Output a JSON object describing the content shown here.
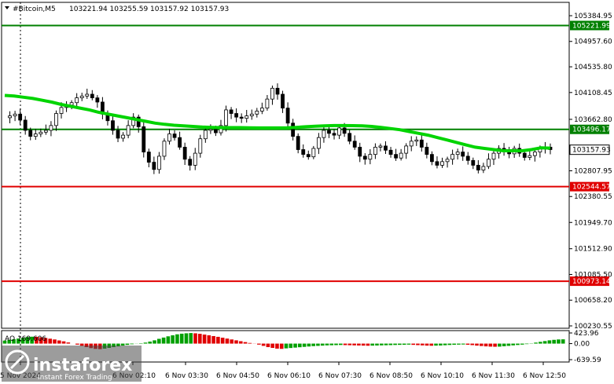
{
  "symbol": "#Bitcoin",
  "timeframe": "M5",
  "ohlc_header": "103221.94 103255.59 103157.92 103157.93",
  "chart_data": [
    {
      "type": "candlestick",
      "title": "#Bitcoin,M5",
      "ylim": [
        100230.55,
        105384.95
      ],
      "y_tick_labels": [
        "105384.95",
        "104957.60",
        "104535.80",
        "104108.45",
        "103662.80",
        "102807.95",
        "102380.55",
        "101949.70",
        "101512.90",
        "101085.50",
        "100658.20",
        "100230.55"
      ],
      "x_tick_labels": [
        "5 Nov 2024",
        "6 Nov 02:10",
        "6 Nov 03:30",
        "6 Nov 04:50",
        "6 Nov 06:10",
        "6 Nov 07:30",
        "6 Nov 08:50",
        "6 Nov 10:10",
        "6 Nov 11:30",
        "6 Nov 12:50"
      ],
      "price_path": [
        103690,
        103720,
        103750,
        103650,
        103480,
        103380,
        103420,
        103450,
        103480,
        103560,
        103760,
        103860,
        103900,
        103940,
        104020,
        104050,
        104080,
        104020,
        103950,
        103750,
        103640,
        103480,
        103350,
        103400,
        103560,
        103700,
        103540,
        103120,
        102950,
        102830,
        103050,
        103300,
        103420,
        103360,
        103200,
        103000,
        102900,
        103100,
        103340,
        103480,
        103500,
        103440,
        103560,
        103820,
        103760,
        103700,
        103680,
        103720,
        103750,
        103800,
        103850,
        104000,
        104180,
        104080,
        103850,
        103600,
        103380,
        103160,
        103080,
        103040,
        103180,
        103360,
        103480,
        103430,
        103400,
        103520,
        103430,
        103300,
        103200,
        103050,
        103000,
        103080,
        103200,
        103220,
        103150,
        103080,
        103020,
        103100,
        103220,
        103300,
        103320,
        103200,
        103080,
        102960,
        102900,
        102960,
        103000,
        103080,
        103120,
        103050,
        102980,
        102900,
        102820,
        102880,
        103000,
        103100,
        103180,
        103140,
        103090,
        103180,
        103100,
        103030,
        103060,
        103120,
        103180,
        103200,
        103160
      ],
      "series": [
        {
          "type": "moving-average",
          "color": "#00d400",
          "values": [
            104060,
            104050,
            104030,
            104010,
            103980,
            103950,
            103910,
            103880,
            103850,
            103820,
            103780,
            103750,
            103720,
            103690,
            103660,
            103630,
            103600,
            103580,
            103565,
            103555,
            103545,
            103535,
            103530,
            103525,
            103525,
            103525,
            103522,
            103520,
            103520,
            103520,
            103522,
            103530,
            103540,
            103548,
            103555,
            103560,
            103560,
            103558,
            103555,
            103545,
            103530,
            103510,
            103490,
            103460,
            103430,
            103400,
            103360,
            103320,
            103280,
            103240,
            103200,
            103180,
            103160,
            103140,
            103140,
            103140,
            103160,
            103190,
            103185
          ]
        },
        {
          "type": "horizontal-level",
          "value": 105221.99,
          "label": "105221.99",
          "color": "#008000"
        },
        {
          "type": "horizontal-level",
          "value": 103496.17,
          "label": "103496.17",
          "color": "#008000"
        },
        {
          "type": "horizontal-level",
          "value": 102544.57,
          "label": "102544.57",
          "color": "#e00000"
        },
        {
          "type": "horizontal-level",
          "value": 100973.14,
          "label": "100973.14",
          "color": "#e00000"
        }
      ],
      "current_price": {
        "value": 103157.93,
        "label": "103157.93"
      }
    },
    {
      "type": "bar",
      "title": "AO 169.606",
      "ylim": [
        -639.59,
        423.96
      ],
      "y_tick_labels": [
        "423.96",
        "0.00",
        "-639.59"
      ],
      "values": [
        120,
        150,
        175,
        200,
        230,
        260,
        275,
        270,
        250,
        225,
        195,
        165,
        125,
        90,
        45,
        0,
        -40,
        -90,
        -140,
        -180,
        -210,
        -220,
        -200,
        -170,
        -140,
        -110,
        -80,
        -50,
        -25,
        -5,
        15,
        40,
        80,
        130,
        190,
        240,
        290,
        330,
        370,
        395,
        410,
        420,
        410,
        390,
        360,
        330,
        300,
        270,
        235,
        200,
        165,
        130,
        95,
        60,
        25,
        -5,
        -40,
        -90,
        -140,
        -170,
        -200,
        -210,
        -190,
        -175,
        -160,
        -145,
        -130,
        -115,
        -100,
        -90,
        -80,
        -70,
        -65,
        -60,
        -55,
        -60,
        -65,
        -70,
        -75,
        -80,
        -85,
        -80,
        -75,
        -70,
        -65,
        -60,
        -55,
        -50,
        -45,
        -40,
        -50,
        -60,
        -70,
        -80,
        -85,
        -80,
        -75,
        -65,
        -55,
        -45,
        -40,
        -35,
        -45,
        -60,
        -80,
        -95,
        -110,
        -120,
        -125,
        -120,
        -105,
        -90,
        -70,
        -55,
        -40,
        -20,
        10,
        40,
        70,
        100,
        130,
        150,
        165,
        170
      ]
    }
  ],
  "watermark": {
    "brand": "instaforex",
    "tagline": "Instant Forex Trading"
  }
}
